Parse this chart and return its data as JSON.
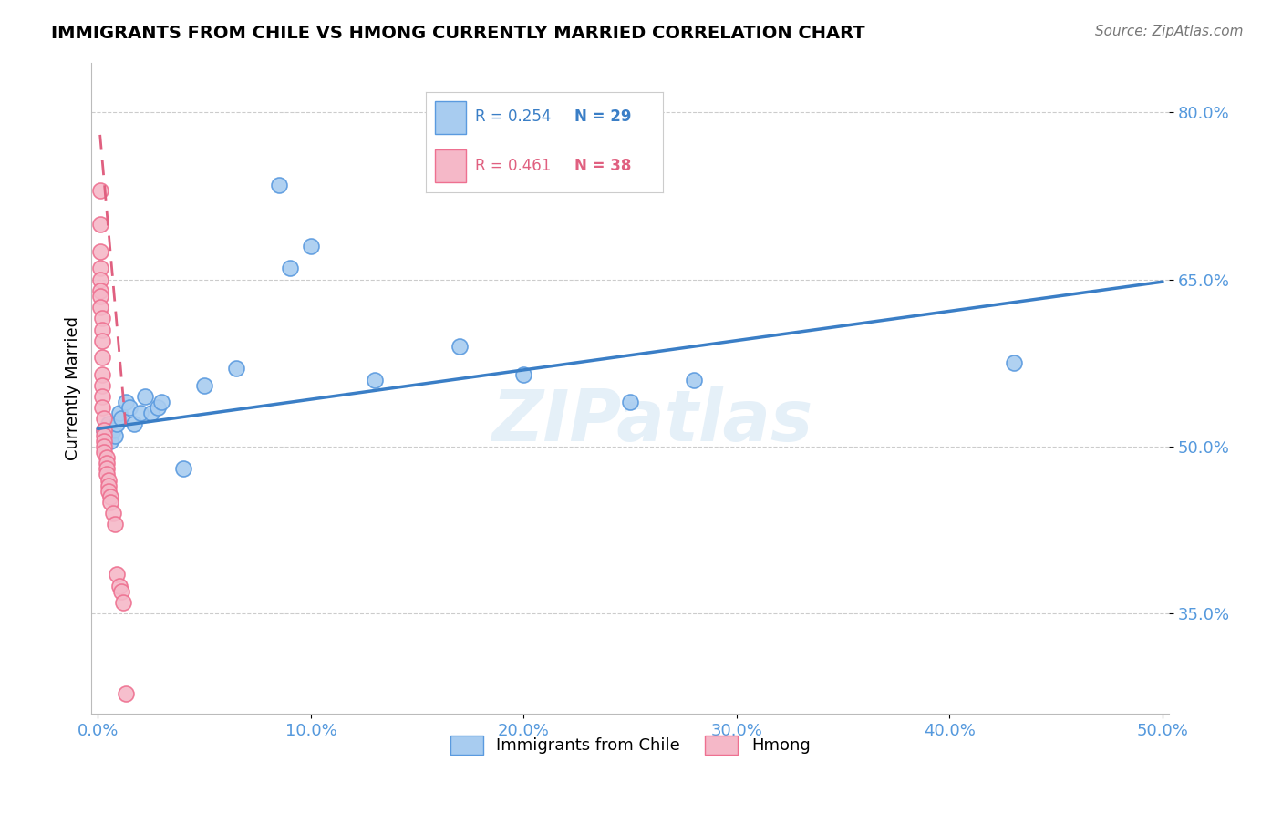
{
  "title": "IMMIGRANTS FROM CHILE VS HMONG CURRENTLY MARRIED CORRELATION CHART",
  "source": "Source: ZipAtlas.com",
  "ylabel_label": "Currently Married",
  "xlim": [
    -0.003,
    0.503
  ],
  "ylim": [
    0.26,
    0.845
  ],
  "yticks": [
    0.35,
    0.5,
    0.65,
    0.8
  ],
  "ytick_labels": [
    "35.0%",
    "50.0%",
    "65.0%",
    "80.0%"
  ],
  "xticks": [
    0.0,
    0.1,
    0.2,
    0.3,
    0.4,
    0.5
  ],
  "xtick_labels": [
    "0.0%",
    "10.0%",
    "20.0%",
    "30.0%",
    "40.0%",
    "50.0%"
  ],
  "chile_R": 0.254,
  "chile_N": 29,
  "hmong_R": 0.461,
  "hmong_N": 38,
  "chile_color": "#A8CCF0",
  "hmong_color": "#F5B8C8",
  "chile_edge_color": "#5A9ADF",
  "hmong_edge_color": "#EE7090",
  "chile_line_color": "#3A7EC6",
  "hmong_line_color": "#E06080",
  "watermark": "ZIPatlas",
  "grid_color": "#CCCCCC",
  "tick_color": "#5599DD",
  "chile_x": [
    0.003,
    0.005,
    0.005,
    0.006,
    0.007,
    0.008,
    0.009,
    0.01,
    0.011,
    0.013,
    0.015,
    0.017,
    0.02,
    0.022,
    0.025,
    0.028,
    0.03,
    0.04,
    0.05,
    0.065,
    0.09,
    0.1,
    0.13,
    0.17,
    0.2,
    0.25,
    0.28,
    0.43,
    0.085
  ],
  "chile_y": [
    0.515,
    0.52,
    0.51,
    0.505,
    0.515,
    0.51,
    0.52,
    0.53,
    0.525,
    0.54,
    0.535,
    0.52,
    0.53,
    0.545,
    0.53,
    0.535,
    0.54,
    0.48,
    0.555,
    0.57,
    0.66,
    0.68,
    0.56,
    0.59,
    0.565,
    0.54,
    0.56,
    0.575,
    0.735
  ],
  "hmong_x": [
    0.001,
    0.001,
    0.001,
    0.001,
    0.001,
    0.001,
    0.001,
    0.001,
    0.002,
    0.002,
    0.002,
    0.002,
    0.002,
    0.002,
    0.002,
    0.002,
    0.003,
    0.003,
    0.003,
    0.003,
    0.003,
    0.003,
    0.004,
    0.004,
    0.004,
    0.004,
    0.005,
    0.005,
    0.005,
    0.006,
    0.006,
    0.007,
    0.008,
    0.009,
    0.01,
    0.011,
    0.012,
    0.013
  ],
  "hmong_y": [
    0.73,
    0.7,
    0.675,
    0.66,
    0.65,
    0.64,
    0.635,
    0.625,
    0.615,
    0.605,
    0.595,
    0.58,
    0.565,
    0.555,
    0.545,
    0.535,
    0.525,
    0.515,
    0.51,
    0.505,
    0.5,
    0.495,
    0.49,
    0.485,
    0.48,
    0.475,
    0.47,
    0.465,
    0.46,
    0.455,
    0.45,
    0.44,
    0.43,
    0.385,
    0.375,
    0.37,
    0.36,
    0.278
  ],
  "blue_line_x0": 0.0,
  "blue_line_y0": 0.516,
  "blue_line_x1": 0.5,
  "blue_line_y1": 0.648,
  "pink_line_x0": 0.001,
  "pink_line_y0": 0.78,
  "pink_line_x1": 0.013,
  "pink_line_y1": 0.52
}
